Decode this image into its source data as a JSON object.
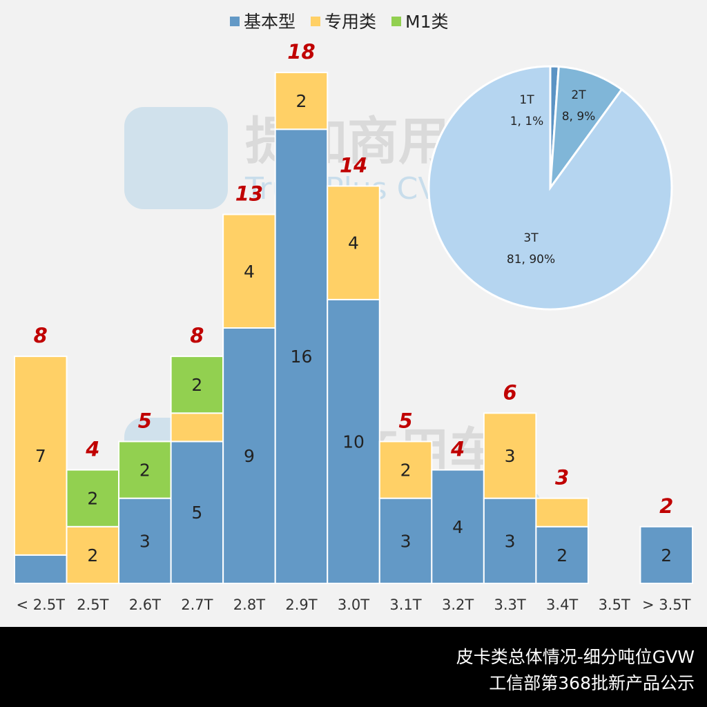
{
  "chart_data": {
    "type": "bar",
    "stacked": true,
    "categories": [
      "< 2.5T",
      "2.5T",
      "2.6T",
      "2.7T",
      "2.8T",
      "2.9T",
      "3.0T",
      "3.1T",
      "3.2T",
      "3.3T",
      "3.4T",
      "3.5T",
      "> 3.5T"
    ],
    "series": [
      {
        "name": "基本型",
        "color": "#6399c6",
        "values": [
          1,
          0,
          3,
          5,
          9,
          16,
          10,
          3,
          4,
          3,
          2,
          0,
          2
        ]
      },
      {
        "name": "专用类",
        "color": "#ffd066",
        "values": [
          7,
          2,
          0,
          1,
          4,
          2,
          4,
          2,
          0,
          3,
          1,
          0,
          0
        ]
      },
      {
        "name": "M1类",
        "color": "#92d050",
        "values": [
          0,
          2,
          2,
          2,
          0,
          0,
          0,
          0,
          0,
          0,
          0,
          0,
          0
        ]
      }
    ],
    "totals": [
      8,
      4,
      5,
      8,
      13,
      18,
      14,
      5,
      4,
      6,
      3,
      0,
      2
    ],
    "total_color": "#c00000",
    "legend_position": "top-center",
    "ylim": [
      0,
      18
    ],
    "grid": false,
    "inset_pie": {
      "type": "pie",
      "slices": [
        {
          "label": "1T",
          "value": 1,
          "percent": "1%",
          "text": "1, 1%",
          "color": "#5b93c4"
        },
        {
          "label": "2T",
          "value": 8,
          "percent": "9%",
          "text": "8, 9%",
          "color": "#80b6d8"
        },
        {
          "label": "3T",
          "value": 81,
          "percent": "90%",
          "text": "81, 90%",
          "color": "#b5d5f0"
        }
      ]
    }
  },
  "watermark": {
    "cn": "提加商用车",
    "en": "TruckPlus CV studio"
  },
  "footer": {
    "line1": "皮卡类总体情况-细分吨位GVW",
    "line2": "工信部第368批新产品公示"
  }
}
